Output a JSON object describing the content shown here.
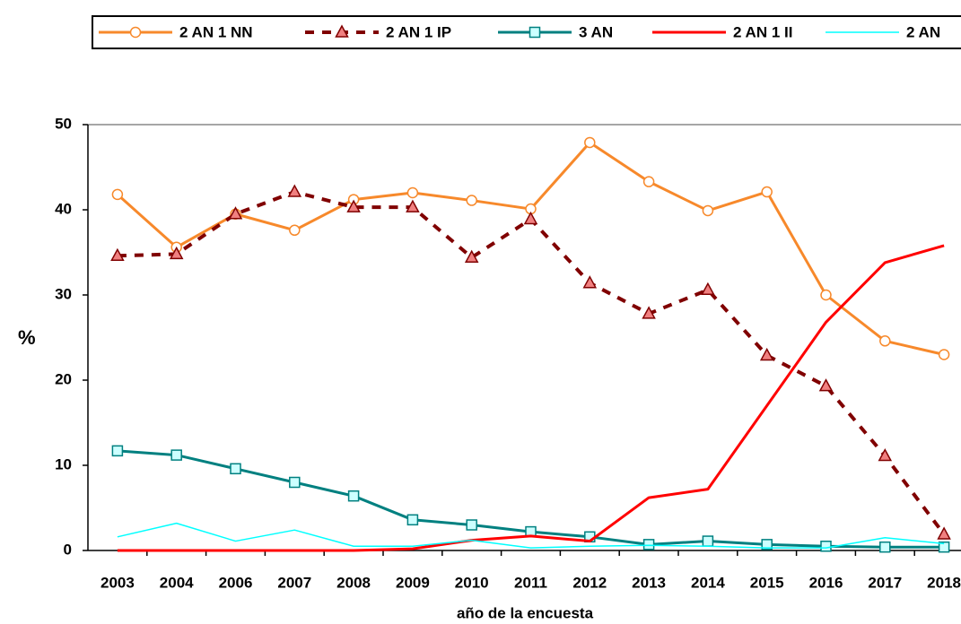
{
  "chart_data": {
    "type": "line",
    "y_label": "%",
    "x_label": "año de la encuesta",
    "categories": [
      "2003",
      "2004",
      "2006",
      "2007",
      "2008",
      "2009",
      "2010",
      "2011",
      "2012",
      "2013",
      "2014",
      "2015",
      "2016",
      "2017",
      "2018"
    ],
    "ylim": [
      0,
      50
    ],
    "yticks": [
      0,
      10,
      20,
      30,
      40,
      50
    ],
    "series": [
      {
        "name": "2 AN 1 NN",
        "color": "#f7892b",
        "marker": "circle",
        "dash": false,
        "width": 3,
        "values": [
          41.8,
          35.6,
          39.5,
          37.6,
          41.2,
          42.0,
          41.1,
          40.1,
          47.9,
          43.3,
          39.9,
          42.1,
          30.0,
          24.6,
          23.0
        ]
      },
      {
        "name": "2 AN 1 IP",
        "color": "#800000",
        "marker": "triangle",
        "dash": true,
        "width": 4,
        "values": [
          34.6,
          34.8,
          39.5,
          42.1,
          40.3,
          40.3,
          34.4,
          38.9,
          31.4,
          27.8,
          30.6,
          22.9,
          19.3,
          11.1,
          1.9
        ]
      },
      {
        "name": "3 AN",
        "color": "#008080",
        "marker": "square",
        "dash": false,
        "width": 3,
        "values": [
          11.7,
          11.2,
          9.6,
          8.0,
          6.4,
          3.6,
          3.0,
          2.2,
          1.6,
          0.7,
          1.1,
          0.7,
          0.5,
          0.4,
          0.4
        ]
      },
      {
        "name": "2 AN 1 II",
        "color": "#ff0000",
        "marker": "none",
        "dash": false,
        "width": 3,
        "values": [
          0,
          0,
          0,
          0,
          0,
          0.2,
          1.2,
          1.7,
          1.1,
          6.2,
          7.2,
          17.0,
          26.8,
          33.8,
          35.8
        ]
      },
      {
        "name": "2 AN",
        "color": "#00ffff",
        "marker": "none",
        "dash": false,
        "width": 1.5,
        "values": [
          1.6,
          3.2,
          1.1,
          2.4,
          0.5,
          0.5,
          1.2,
          0.3,
          0.5,
          0.6,
          0.5,
          0.3,
          0.3,
          1.5,
          0.8
        ]
      }
    ]
  }
}
